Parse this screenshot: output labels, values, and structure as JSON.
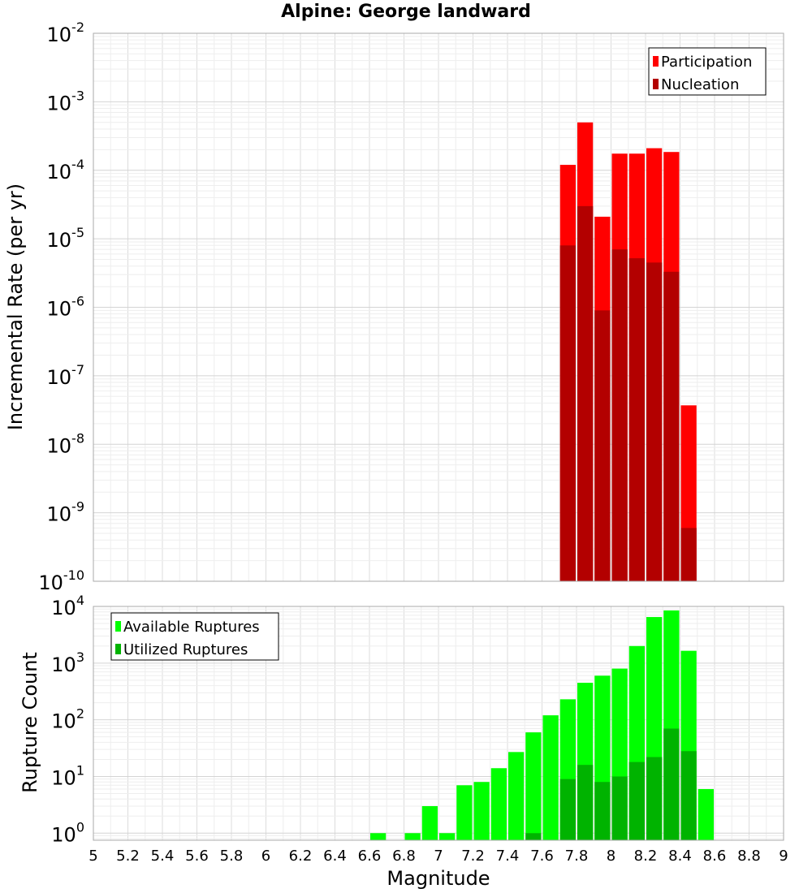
{
  "title": "Alpine: George landward",
  "chart_data": [
    {
      "type": "bar",
      "scale": "log",
      "ylabel": "Incremental Rate (per yr)",
      "ylim": [
        1e-10,
        0.01
      ],
      "grid": true,
      "legend_position": "top-right",
      "y_tick_labels": [
        {
          "base": "10",
          "exp": "-2",
          "value": 0.01
        },
        {
          "base": "10",
          "exp": "-3",
          "value": 0.001
        },
        {
          "base": "10",
          "exp": "-4",
          "value": 0.0001
        },
        {
          "base": "10",
          "exp": "-5",
          "value": 1e-05
        },
        {
          "base": "10",
          "exp": "-6",
          "value": 1e-06
        },
        {
          "base": "10",
          "exp": "-7",
          "value": 1e-07
        },
        {
          "base": "10",
          "exp": "-8",
          "value": 1e-08
        },
        {
          "base": "10",
          "exp": "-9",
          "value": 1e-09
        },
        {
          "base": "10",
          "exp": "-10",
          "value": 1e-10
        }
      ],
      "x": [
        7.75,
        7.85,
        7.95,
        8.05,
        8.15,
        8.25,
        8.35,
        8.45
      ],
      "series": [
        {
          "name": "Participation",
          "color": "#ff0000",
          "values": [
            0.00012,
            0.0005,
            2.1e-05,
            0.000175,
            0.000175,
            0.00021,
            0.000185,
            3.7e-08
          ]
        },
        {
          "name": "Nucleation",
          "color": "#b30000",
          "values": [
            8e-06,
            3e-05,
            9e-07,
            7e-06,
            5.2e-06,
            4.5e-06,
            3.3e-06,
            6e-10
          ]
        }
      ]
    },
    {
      "type": "bar",
      "scale": "log",
      "xlabel": "Magnitude",
      "ylabel": "Rupture Count",
      "ylim": [
        0.75,
        10000
      ],
      "xlim": [
        5,
        9
      ],
      "grid": true,
      "legend_position": "top-left",
      "x_tick_labels": [
        "5",
        "5.2",
        "5.4",
        "5.6",
        "5.8",
        "6",
        "6.2",
        "6.4",
        "6.6",
        "6.8",
        "7",
        "7.2",
        "7.4",
        "7.6",
        "7.8",
        "8",
        "8.2",
        "8.4",
        "8.6",
        "8.8",
        "9"
      ],
      "y_tick_labels": [
        {
          "base": "10",
          "exp": "4",
          "value": 10000
        },
        {
          "base": "10",
          "exp": "3",
          "value": 1000
        },
        {
          "base": "10",
          "exp": "2",
          "value": 100
        },
        {
          "base": "10",
          "exp": "1",
          "value": 10
        },
        {
          "base": "10",
          "exp": "0",
          "value": 1
        }
      ],
      "x": [
        6.65,
        6.75,
        6.85,
        6.95,
        7.05,
        7.15,
        7.25,
        7.35,
        7.45,
        7.55,
        7.65,
        7.75,
        7.85,
        7.95,
        8.05,
        8.15,
        8.25,
        8.35,
        8.45,
        8.55
      ],
      "series": [
        {
          "name": "Available Ruptures",
          "color": "#00ff00",
          "values": [
            1,
            0,
            1,
            3,
            1,
            7,
            8,
            14,
            27,
            60,
            120,
            230,
            450,
            600,
            800,
            2000,
            6500,
            8500,
            1650,
            6
          ]
        },
        {
          "name": "Utilized Ruptures",
          "color": "#00b300",
          "values": [
            0,
            0,
            0,
            0,
            0,
            0,
            0,
            0,
            0,
            1,
            0,
            9,
            16,
            8,
            10,
            18,
            22,
            70,
            28,
            0
          ]
        }
      ]
    }
  ]
}
